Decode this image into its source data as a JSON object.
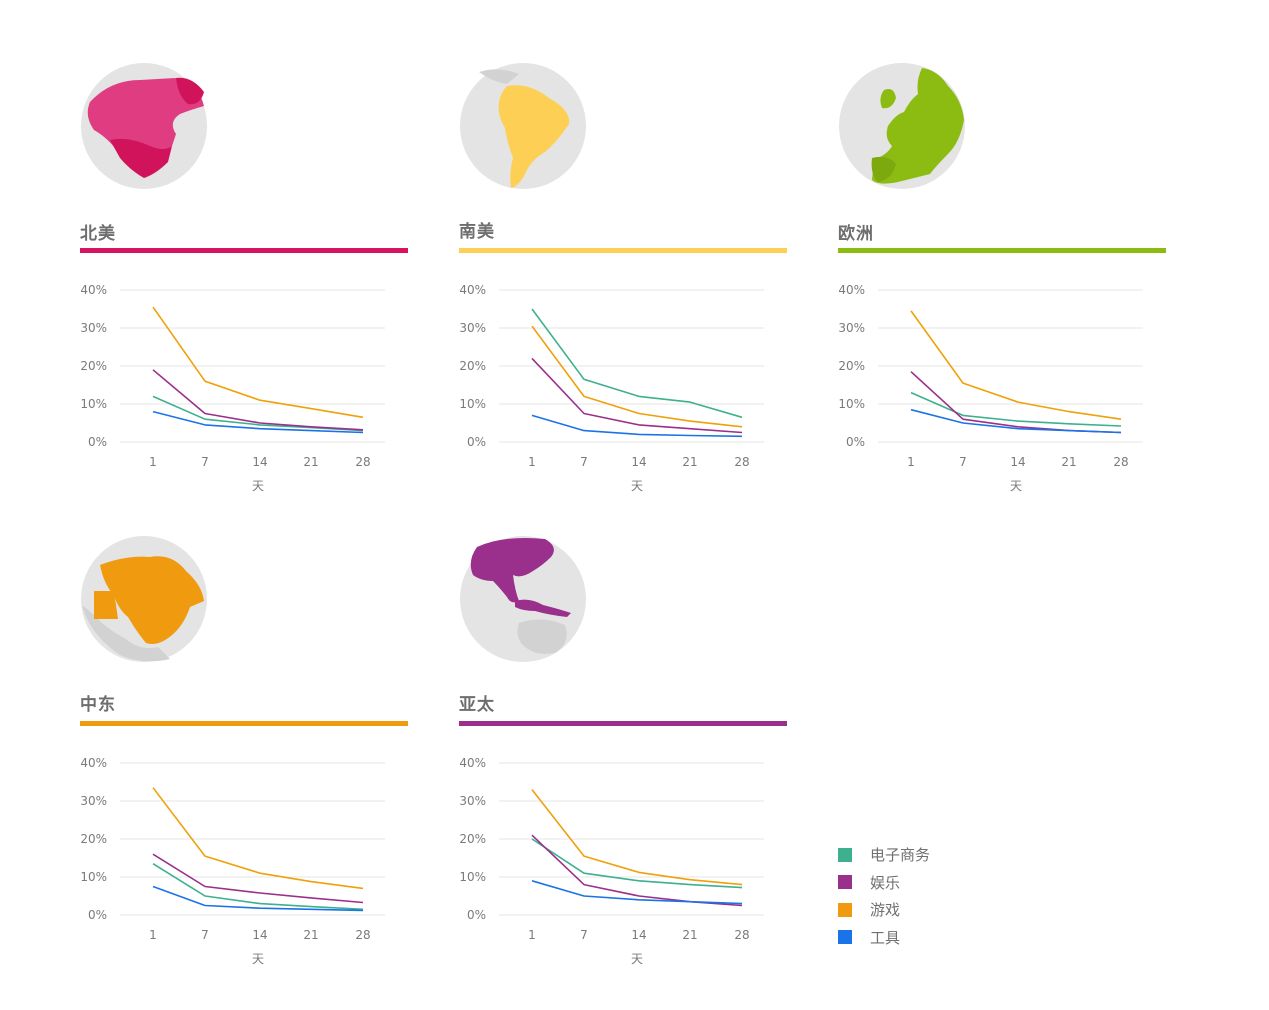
{
  "legend": {
    "items": [
      {
        "label": "电子商务",
        "color": "#3db08f"
      },
      {
        "label": "娱乐",
        "color": "#9b2f8c"
      },
      {
        "label": "游戏",
        "color": "#f0a00a"
      },
      {
        "label": "工具",
        "color": "#1a73e8"
      }
    ]
  },
  "regions": [
    {
      "title": "北美",
      "color": "#d6135f",
      "icon": "north-america-globe-icon"
    },
    {
      "title": "南美",
      "color": "#fdd055",
      "icon": "south-america-globe-icon"
    },
    {
      "title": "欧洲",
      "color": "#8cbc12",
      "icon": "europe-globe-icon"
    },
    {
      "title": "中东",
      "color": "#f09a10",
      "icon": "middle-east-globe-icon"
    },
    {
      "title": "亚太",
      "color": "#9b2f8c",
      "icon": "asia-pacific-globe-icon"
    }
  ],
  "chart_data": [
    {
      "type": "line",
      "title": "北美",
      "xlabel": "天",
      "x": [
        1,
        7,
        14,
        21,
        28
      ],
      "yticks": [
        "0%",
        "10%",
        "20%",
        "30%",
        "40%"
      ],
      "ylim": [
        0,
        40
      ],
      "grid": true,
      "series": [
        {
          "name": "电子商务",
          "values": [
            12,
            6,
            4.5,
            3.8,
            3
          ]
        },
        {
          "name": "娱乐",
          "values": [
            19,
            7.5,
            5,
            4,
            3.2
          ]
        },
        {
          "name": "游戏",
          "values": [
            35.5,
            16,
            11,
            8.8,
            6.5
          ]
        },
        {
          "name": "工具",
          "values": [
            8,
            4.5,
            3.5,
            3,
            2.5
          ]
        }
      ]
    },
    {
      "type": "line",
      "title": "南美",
      "xlabel": "天",
      "x": [
        1,
        7,
        14,
        21,
        28
      ],
      "yticks": [
        "0%",
        "10%",
        "20%",
        "30%",
        "40%"
      ],
      "ylim": [
        0,
        40
      ],
      "grid": true,
      "series": [
        {
          "name": "电子商务",
          "values": [
            35,
            16.5,
            12,
            10.5,
            6.5
          ]
        },
        {
          "name": "娱乐",
          "values": [
            22,
            7.5,
            4.5,
            3.5,
            2.5
          ]
        },
        {
          "name": "游戏",
          "values": [
            30.5,
            12,
            7.5,
            5.5,
            4
          ]
        },
        {
          "name": "工具",
          "values": [
            7,
            3,
            2,
            1.7,
            1.5
          ]
        }
      ]
    },
    {
      "type": "line",
      "title": "欧洲",
      "xlabel": "天",
      "x": [
        1,
        7,
        14,
        21,
        28
      ],
      "yticks": [
        "0%",
        "10%",
        "20%",
        "30%",
        "40%"
      ],
      "ylim": [
        0,
        40
      ],
      "grid": true,
      "series": [
        {
          "name": "电子商务",
          "values": [
            13,
            7,
            5.5,
            4.8,
            4.2
          ]
        },
        {
          "name": "娱乐",
          "values": [
            18.5,
            6,
            4,
            3,
            2.5
          ]
        },
        {
          "name": "游戏",
          "values": [
            34.5,
            15.5,
            10.5,
            8,
            6
          ]
        },
        {
          "name": "工具",
          "values": [
            8.5,
            5,
            3.5,
            3,
            2.5
          ]
        }
      ]
    },
    {
      "type": "line",
      "title": "中东",
      "xlabel": "天",
      "x": [
        1,
        7,
        14,
        21,
        28
      ],
      "yticks": [
        "0%",
        "10%",
        "20%",
        "30%",
        "40%"
      ],
      "ylim": [
        0,
        40
      ],
      "grid": true,
      "series": [
        {
          "name": "电子商务",
          "values": [
            13.5,
            5,
            3,
            2.2,
            1.5
          ]
        },
        {
          "name": "娱乐",
          "values": [
            16,
            7.5,
            5.8,
            4.5,
            3.3
          ]
        },
        {
          "name": "游戏",
          "values": [
            33.5,
            15.5,
            11,
            8.8,
            7
          ]
        },
        {
          "name": "工具",
          "values": [
            7.5,
            2.5,
            1.8,
            1.5,
            1.2
          ]
        }
      ]
    },
    {
      "type": "line",
      "title": "亚太",
      "xlabel": "天",
      "x": [
        1,
        7,
        14,
        21,
        28
      ],
      "yticks": [
        "0%",
        "10%",
        "20%",
        "30%",
        "40%"
      ],
      "ylim": [
        0,
        40
      ],
      "grid": true,
      "series": [
        {
          "name": "电子商务",
          "values": [
            20,
            11,
            9,
            8,
            7.2
          ]
        },
        {
          "name": "娱乐",
          "values": [
            21,
            8,
            5,
            3.5,
            2.5
          ]
        },
        {
          "name": "游戏",
          "values": [
            33,
            15.5,
            11.2,
            9.3,
            8
          ]
        },
        {
          "name": "工具",
          "values": [
            9,
            5,
            4,
            3.5,
            3
          ]
        }
      ]
    }
  ]
}
